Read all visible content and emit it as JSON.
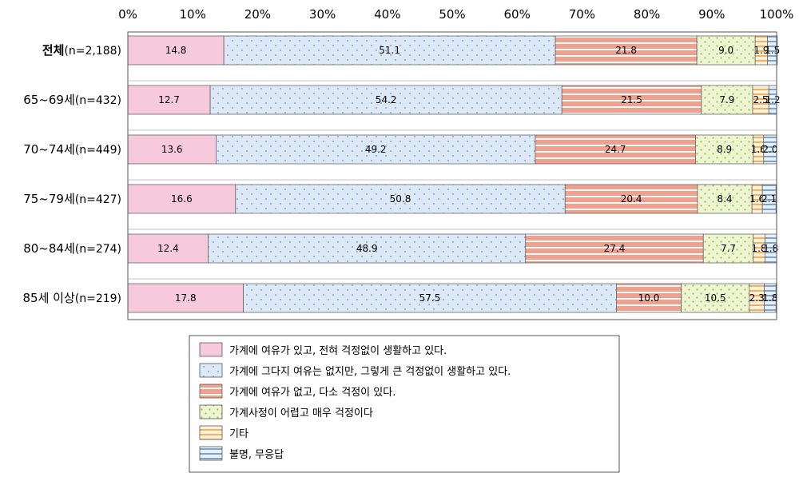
{
  "chart_data": {
    "type": "bar",
    "orientation": "horizontal",
    "stacked": "percent",
    "xlim": [
      0,
      100
    ],
    "x_ticks": [
      "0%",
      "10%",
      "20%",
      "30%",
      "40%",
      "50%",
      "60%",
      "70%",
      "80%",
      "90%",
      "100%"
    ],
    "categories": [
      {
        "label": "전체",
        "n": "(n=2,188)"
      },
      {
        "label": "65~69세",
        "n": "(n=432)"
      },
      {
        "label": "70~74세",
        "n": "(n=449)"
      },
      {
        "label": "75~79세",
        "n": "(n=427)"
      },
      {
        "label": "80~84세",
        "n": "(n=274)"
      },
      {
        "label": "85세 이상",
        "n": "(n=219)"
      }
    ],
    "series": [
      {
        "name": "가계에 여유가 있고, 전혀 걱정없이 생활하고 있다.",
        "color": "#f6c9dd",
        "pattern": "solid",
        "values": [
          14.8,
          12.7,
          13.6,
          16.6,
          12.4,
          17.8
        ]
      },
      {
        "name": "가계에 그다지 여유는 없지만, 그렇게 큰 걱정없이 생활하고 있다.",
        "color": "#dde9f7",
        "pattern": "dots-blue",
        "values": [
          51.1,
          54.2,
          49.2,
          50.8,
          48.9,
          57.5
        ]
      },
      {
        "name": "가계에 여유가 없고, 다소 걱정이 있다.",
        "color": "#f0a08c",
        "pattern": "stripes-white",
        "values": [
          21.8,
          21.5,
          24.7,
          20.4,
          27.4,
          10.0
        ]
      },
      {
        "name": "가계사정이 어렵고 매우 걱정이다",
        "color": "#eef5d2",
        "pattern": "dots-green",
        "values": [
          9.0,
          7.9,
          8.9,
          8.4,
          7.7,
          10.5
        ]
      },
      {
        "name": "기타",
        "color": "#fde2b8",
        "pattern": "stripes-orange",
        "values": [
          1.9,
          2.5,
          1.6,
          1.6,
          1.8,
          2.3
        ]
      },
      {
        "name": "불명, 무응답",
        "color": "#c9daef",
        "pattern": "stripes-blue",
        "values": [
          1.5,
          1.2,
          2.0,
          2.1,
          1.8,
          1.8
        ]
      }
    ],
    "legend_position": "bottom-center",
    "grid": false
  }
}
